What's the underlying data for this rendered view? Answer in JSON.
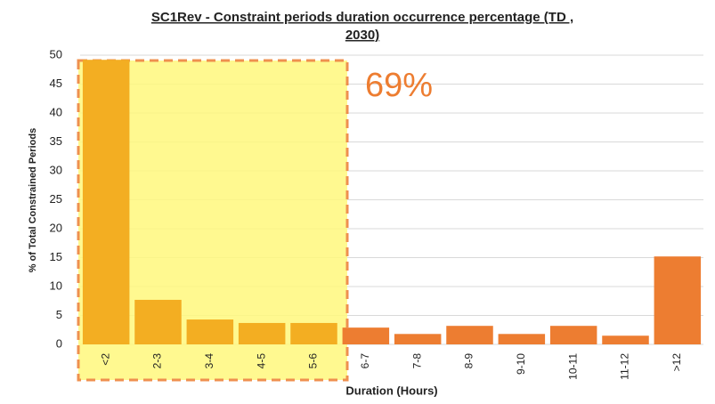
{
  "chart_data": {
    "type": "bar",
    "title": "SC1Rev - Constraint periods duration occurrence percentage (TD ,",
    "title_line2": "2030)",
    "x_label": "Duration (Hours)",
    "y_label": "% of Total Constrained Periods",
    "annotation": "69%",
    "categories": [
      "<2",
      "2-3",
      "3-4",
      "4-5",
      "5-6",
      "6-7",
      "7-8",
      "8-9",
      "9-10",
      "10-11",
      "11-12",
      ">12"
    ],
    "values": [
      49.2,
      7.7,
      4.3,
      3.7,
      3.7,
      2.9,
      1.8,
      3.2,
      1.8,
      3.2,
      1.5,
      15.2
    ],
    "colors": [
      "#f3ae22",
      "#f3ae22",
      "#f3ae22",
      "#f3ae22",
      "#f3ae22",
      "#ed7d31",
      "#ed7d31",
      "#ed7d31",
      "#ed7d31",
      "#ed7d31",
      "#ed7d31",
      "#ed7d31"
    ],
    "ylim": [
      0,
      50
    ],
    "yticks": [
      0,
      5,
      10,
      15,
      20,
      25,
      30,
      35,
      40,
      45,
      50
    ],
    "grid": true
  }
}
